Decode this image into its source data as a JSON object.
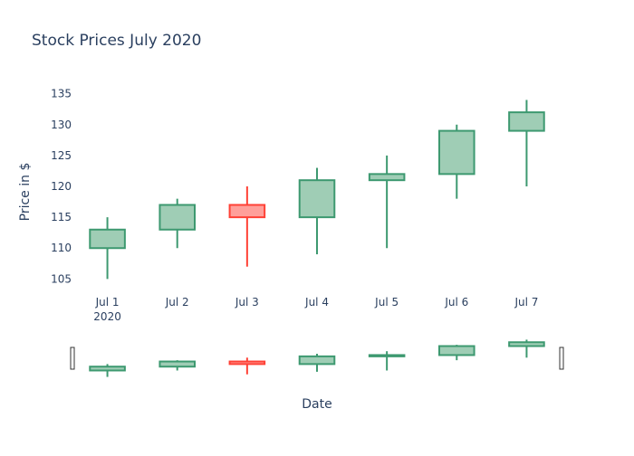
{
  "chart_data": {
    "type": "candlestick",
    "title": "Stock Prices July 2020",
    "xlabel": "Date",
    "ylabel": "Price in $",
    "ylim": [
      103,
      137
    ],
    "yticks": [
      105,
      110,
      115,
      120,
      125,
      130,
      135
    ],
    "categories": [
      "Jul 1",
      "Jul 2",
      "Jul 3",
      "Jul 4",
      "Jul 5",
      "Jul 6",
      "Jul 7"
    ],
    "x_year_label": "2020",
    "ohlc": [
      {
        "date": "Jul 1",
        "open": 110,
        "high": 115,
        "low": 105,
        "close": 113
      },
      {
        "date": "Jul 2",
        "open": 113,
        "high": 118,
        "low": 110,
        "close": 117
      },
      {
        "date": "Jul 3",
        "open": 117,
        "high": 120,
        "low": 107,
        "close": 115
      },
      {
        "date": "Jul 4",
        "open": 115,
        "high": 123,
        "low": 109,
        "close": 121
      },
      {
        "date": "Jul 5",
        "open": 121,
        "high": 125,
        "low": 110,
        "close": 122
      },
      {
        "date": "Jul 6",
        "open": 122,
        "high": 130,
        "low": 118,
        "close": 129
      },
      {
        "date": "Jul 7",
        "open": 129,
        "high": 134,
        "low": 120,
        "close": 132
      }
    ],
    "increasing_color": "#3D9970",
    "increasing_fill": "#9FCDB5",
    "decreasing_color": "#FF4136",
    "decreasing_fill": "#FF9F9A",
    "text_color": "#2A3F5F",
    "grid": false,
    "legend": "none",
    "rangeslider": true
  }
}
